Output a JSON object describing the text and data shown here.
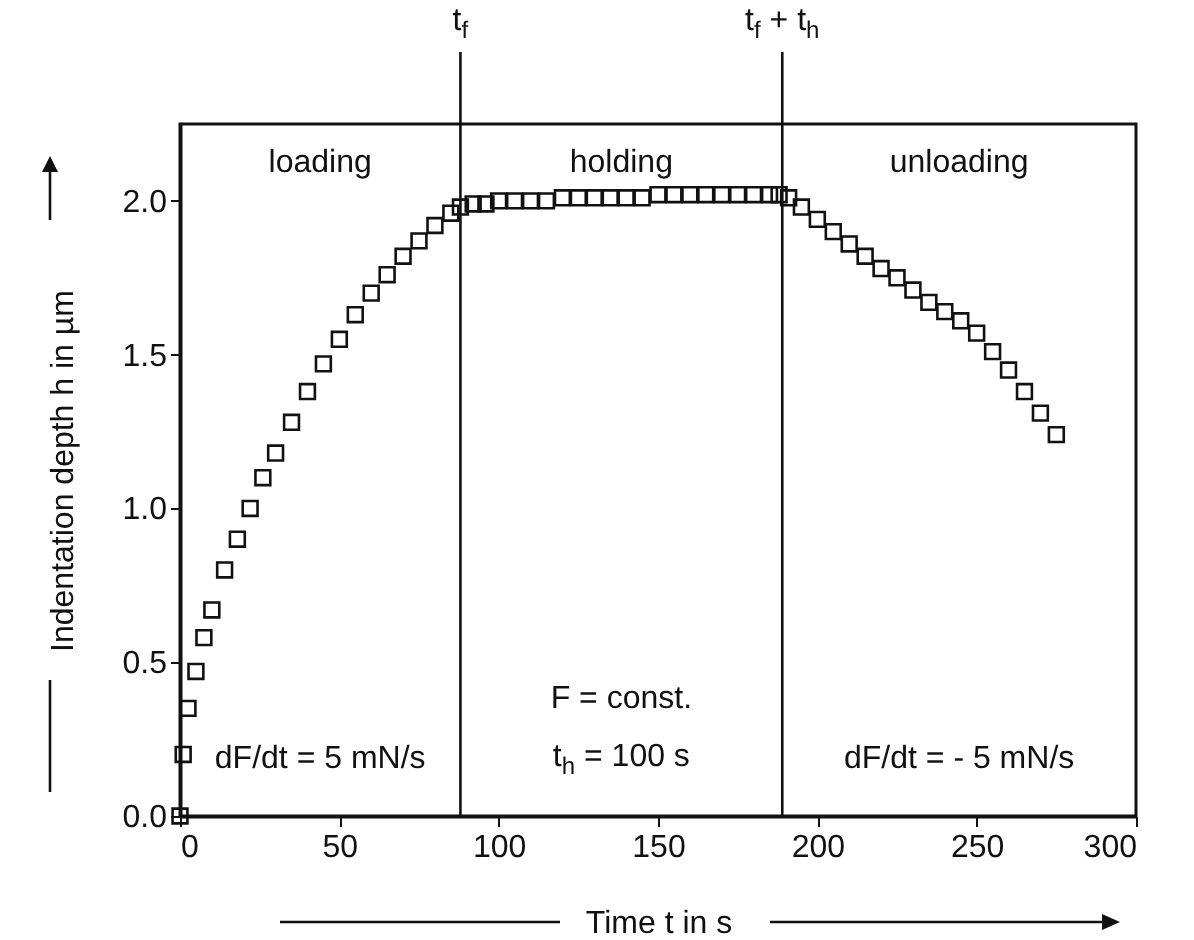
{
  "chart_data": {
    "type": "scatter",
    "xlabel": "Time t in s",
    "ylabel": "Indentation depth h in µm",
    "xlim": [
      0,
      300
    ],
    "ylim": [
      0,
      2.25
    ],
    "xticks": [
      0,
      50,
      100,
      150,
      200,
      250,
      300
    ],
    "yticks": [
      {
        "value": 0,
        "label": "0.0"
      },
      {
        "value": 0.5,
        "label": "0.5"
      },
      {
        "value": 1,
        "label": "1.0"
      },
      {
        "value": 1.5,
        "label": "1.5"
      },
      {
        "value": 2,
        "label": "2.0"
      }
    ],
    "grid": false,
    "marker": "square",
    "x": [
      0,
      1,
      2.5,
      5,
      7.5,
      10,
      14,
      18,
      22,
      26,
      30,
      35,
      40,
      45,
      50,
      55,
      60,
      65,
      70,
      75,
      80,
      85,
      88,
      92,
      96,
      100,
      105,
      110,
      115,
      120,
      125,
      130,
      135,
      140,
      145,
      150,
      155,
      160,
      165,
      170,
      175,
      180,
      185,
      188,
      191,
      195,
      200,
      205,
      210,
      215,
      220,
      225,
      230,
      235,
      240,
      245,
      250,
      255,
      260,
      265,
      270,
      275
    ],
    "series": [
      {
        "color": "#111111",
        "values": [
          0.0,
          0.2,
          0.35,
          0.47,
          0.58,
          0.67,
          0.8,
          0.9,
          1.0,
          1.1,
          1.18,
          1.28,
          1.38,
          1.47,
          1.55,
          1.63,
          1.7,
          1.76,
          1.82,
          1.87,
          1.92,
          1.96,
          1.98,
          1.99,
          1.99,
          2.0,
          2.0,
          2.0,
          2.0,
          2.01,
          2.01,
          2.01,
          2.01,
          2.01,
          2.01,
          2.02,
          2.02,
          2.02,
          2.02,
          2.02,
          2.02,
          2.02,
          2.02,
          2.02,
          2.01,
          1.98,
          1.94,
          1.9,
          1.86,
          1.82,
          1.78,
          1.75,
          1.71,
          1.67,
          1.64,
          1.61,
          1.57,
          1.51,
          1.45,
          1.38,
          1.31,
          1.24
        ]
      }
    ],
    "ref_lines": [
      {
        "axis": "x",
        "value": 88,
        "label": "t$_{f}$",
        "color": "#111111"
      },
      {
        "axis": "x",
        "value": 189,
        "label": "t$_{f}$ + t$_{h}$",
        "color": "#111111"
      }
    ],
    "annotations": [
      "loading",
      "holding",
      "unloading",
      "dF/dt = 5 mN/s",
      "F = const.",
      "t$_{h}$ = 100 s",
      "dF/dt = - 5 mN/s"
    ]
  }
}
